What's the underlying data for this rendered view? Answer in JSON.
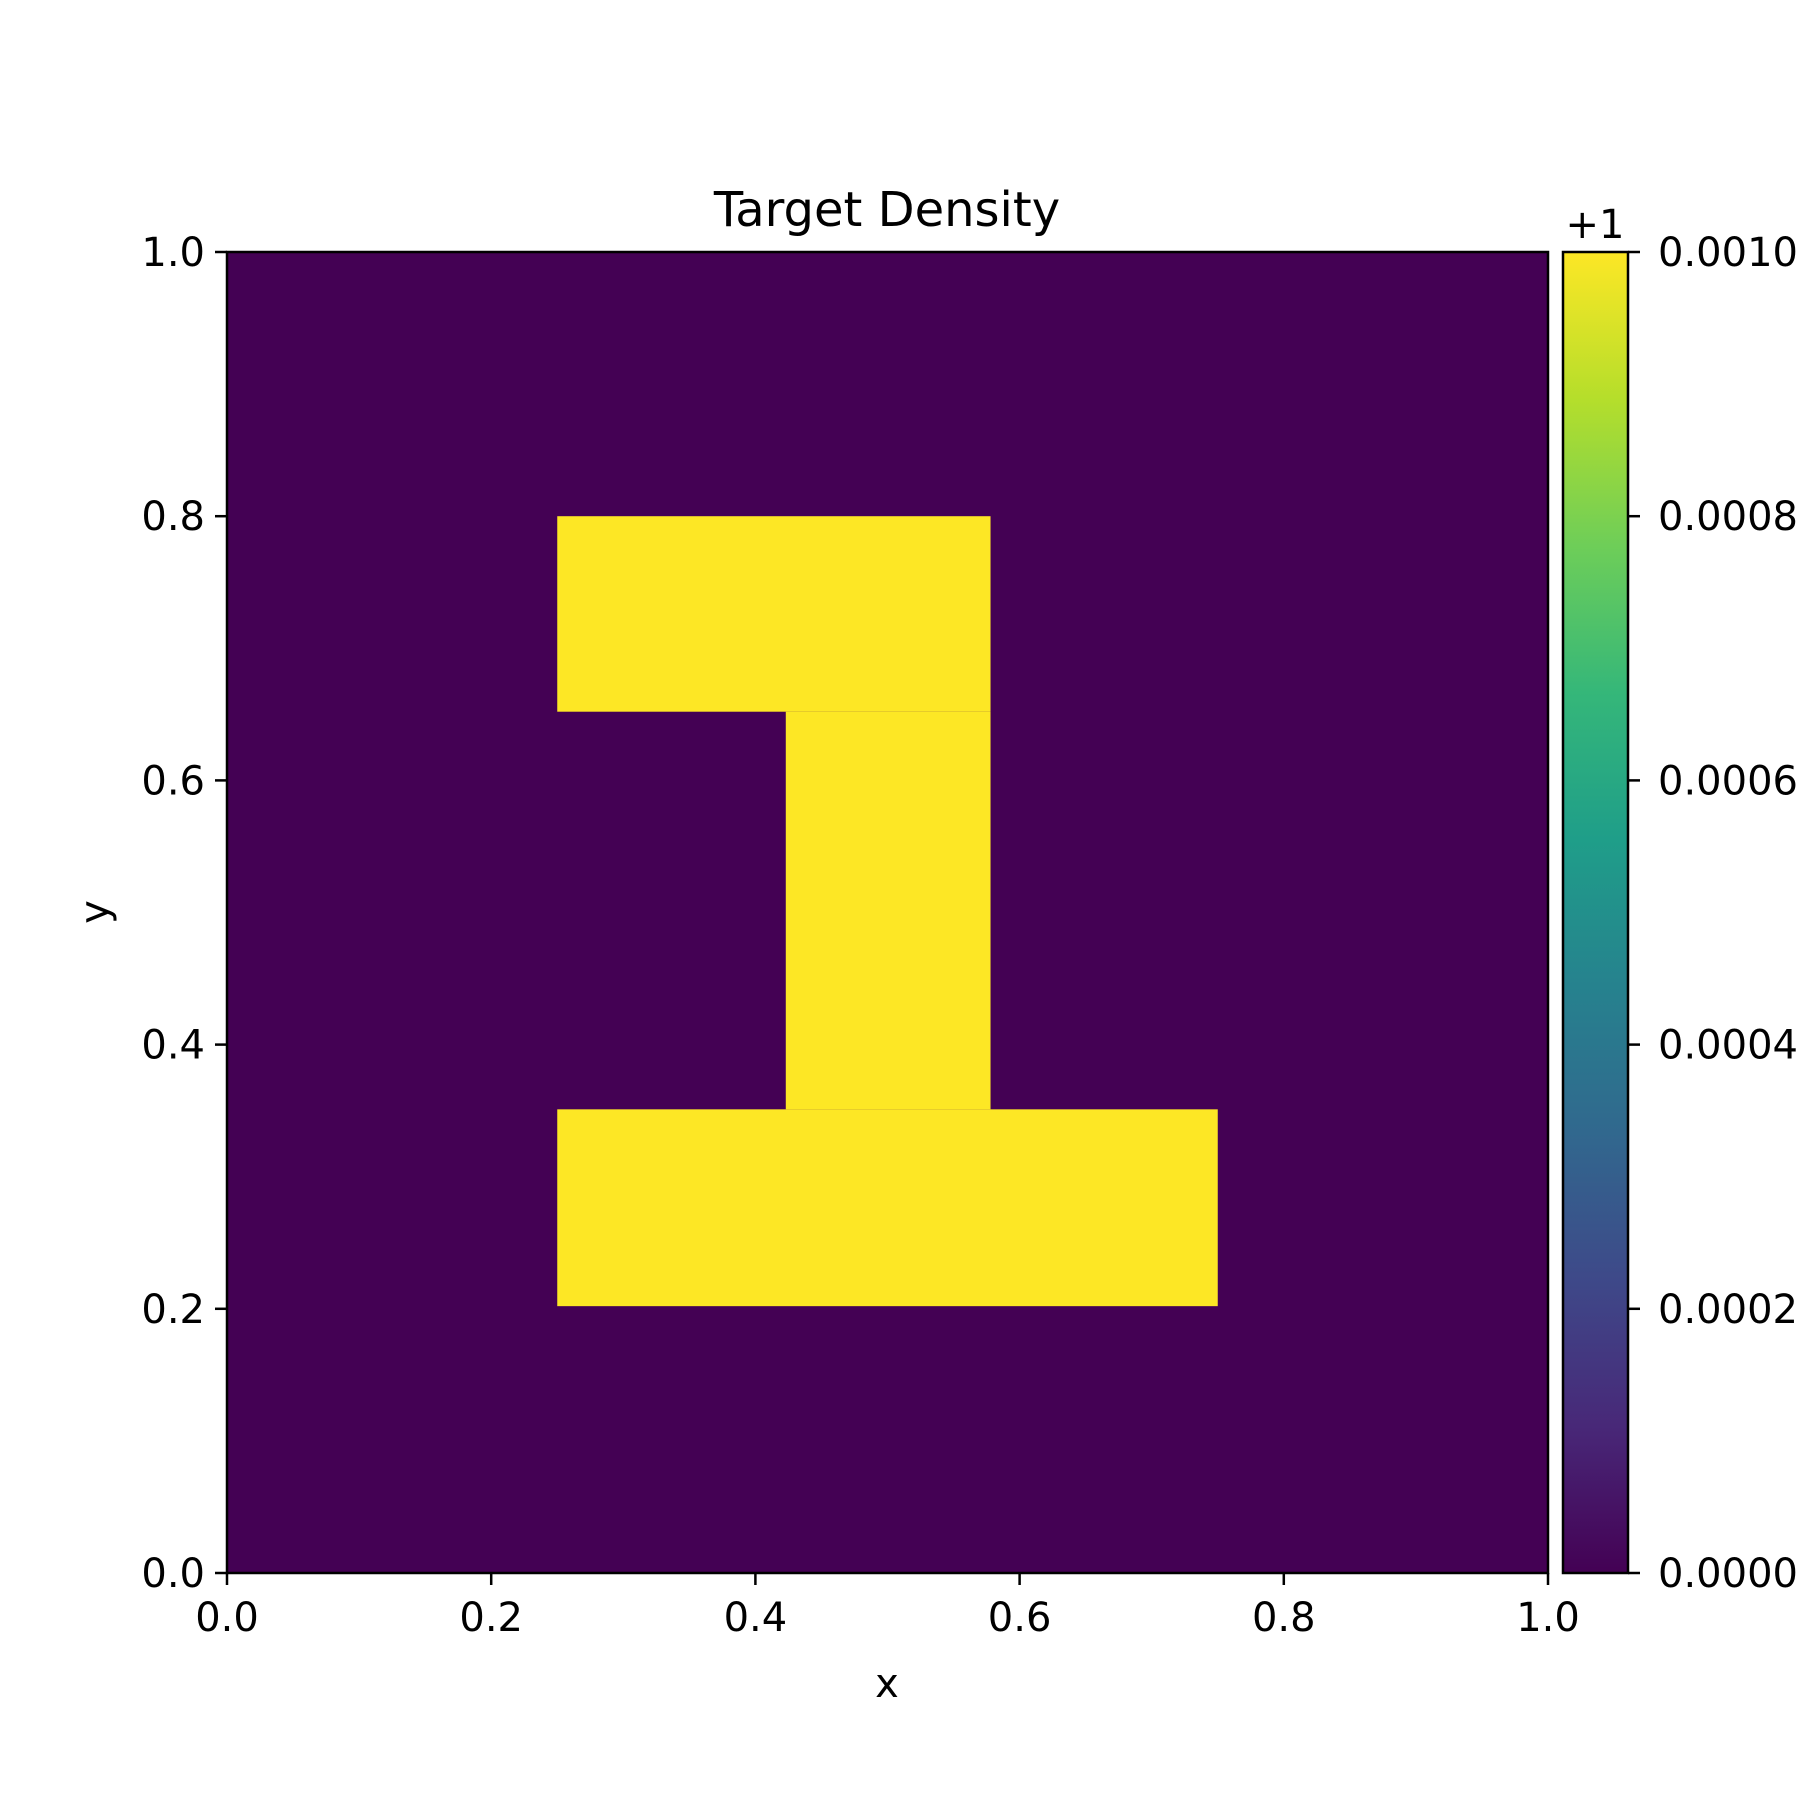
{
  "chart_data": {
    "type": "heatmap",
    "title": "Target Density",
    "xlabel": "x",
    "ylabel": "y",
    "xlim": [
      0.0,
      1.0
    ],
    "ylim": [
      0.0,
      1.0
    ],
    "x_ticks": [
      "0.0",
      "0.2",
      "0.4",
      "0.6",
      "0.8",
      "1.0"
    ],
    "y_ticks": [
      "0.0",
      "0.2",
      "0.4",
      "0.6",
      "0.8",
      "1.0"
    ],
    "grid": false,
    "colormap": "viridis",
    "background_value": 1.0,
    "colorbar": {
      "range": [
        0.0,
        0.001
      ],
      "offset": "+1",
      "ticks": [
        "0.0000",
        "0.0002",
        "0.0004",
        "0.0006",
        "0.0008",
        "0.0010"
      ],
      "tick_values": [
        0.0,
        0.0002,
        0.0004,
        0.0006,
        0.0008,
        0.001
      ]
    },
    "regions": [
      {
        "x": [
          0.25,
          0.578
        ],
        "y": [
          0.652,
          0.8
        ],
        "value": 1.001
      },
      {
        "x": [
          0.423,
          0.578
        ],
        "y": [
          0.351,
          0.652
        ],
        "value": 1.001
      },
      {
        "x": [
          0.25,
          0.75
        ],
        "y": [
          0.202,
          0.351
        ],
        "value": 1.001
      }
    ]
  },
  "colors": {
    "low": "#440154",
    "high": "#fde725",
    "viridis_stops": [
      "#440154",
      "#482878",
      "#3e4989",
      "#31688e",
      "#26828e",
      "#1f9e89",
      "#35b779",
      "#6ece58",
      "#b5de2b",
      "#fde725"
    ]
  }
}
